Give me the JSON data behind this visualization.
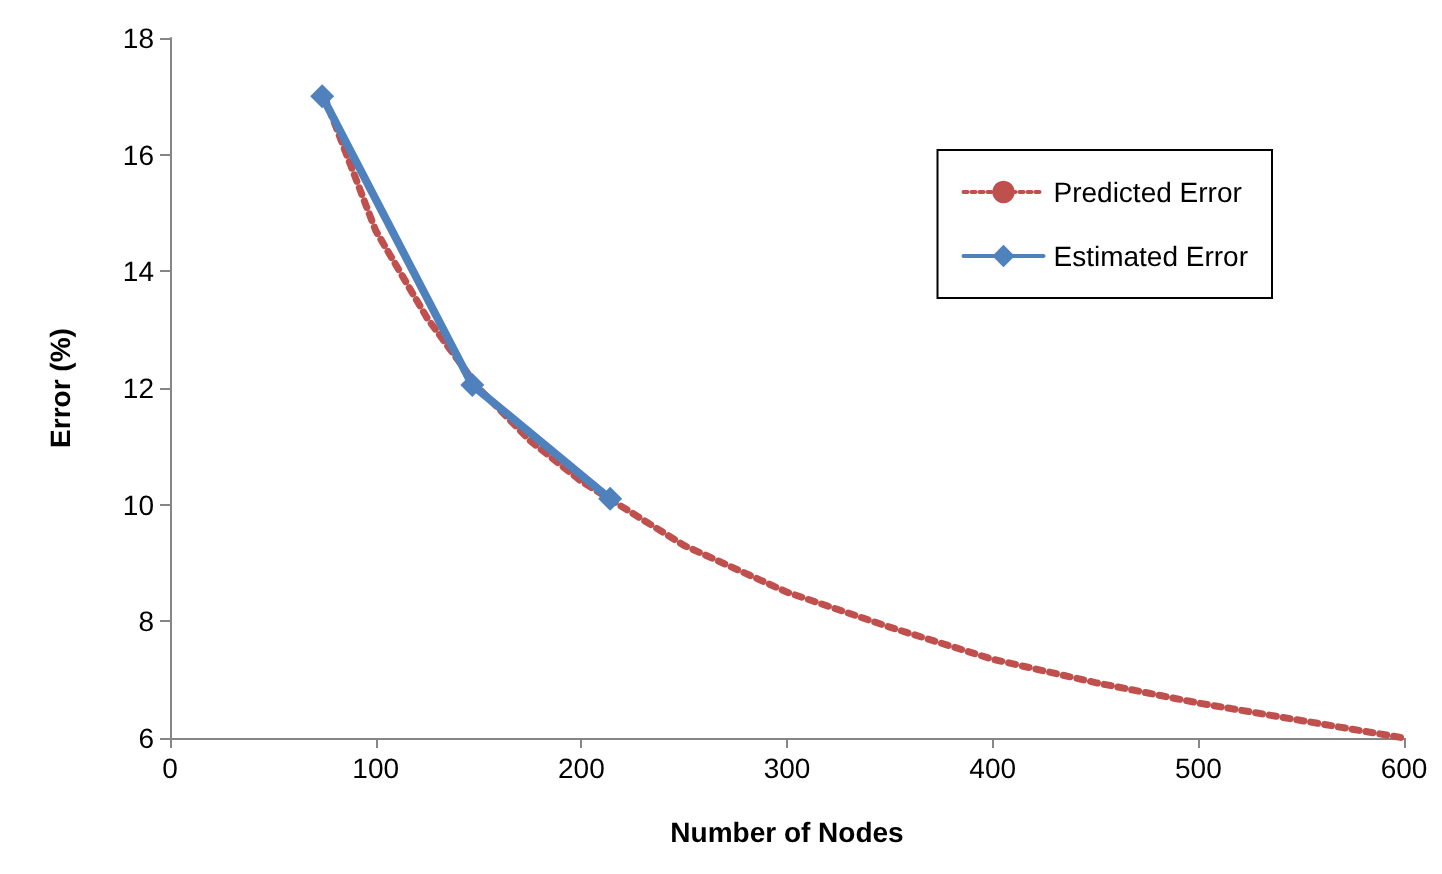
{
  "chart_data": {
    "type": "line",
    "xlabel": "Number of Nodes",
    "ylabel": "Error (%)",
    "xlim": [
      0,
      600
    ],
    "xticks": [
      0,
      100,
      200,
      300,
      400,
      500,
      600
    ],
    "ylim": [
      6,
      18
    ],
    "yticks": [
      6,
      8,
      10,
      12,
      14,
      16,
      18
    ],
    "grid": false,
    "legend": "top right",
    "series": [
      {
        "name": "Predicted Error",
        "color": "#c0504d",
        "line_style": "dotted",
        "marker": "none",
        "x": [
          75,
          100,
          125,
          150,
          175,
          200,
          250,
          300,
          350,
          400,
          450,
          500,
          550,
          600
        ],
        "values": [
          17,
          14.7,
          13.2,
          12,
          11.1,
          10.4,
          9.3,
          8.5,
          7.9,
          7.35,
          6.95,
          6.6,
          6.3,
          6.0
        ]
      },
      {
        "name": "Estimated Error",
        "color": "#4f81bd",
        "line_style": "solid",
        "marker": "diamond",
        "x": [
          74,
          147,
          214
        ],
        "values": [
          17,
          12.05,
          10.1
        ]
      }
    ]
  }
}
